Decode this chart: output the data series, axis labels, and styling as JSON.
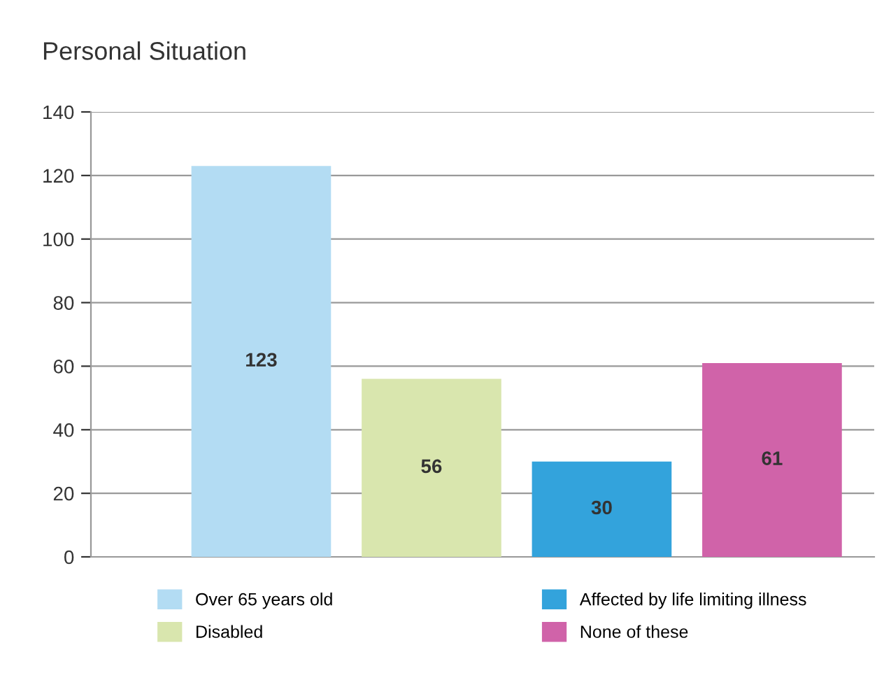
{
  "chart_data": {
    "type": "bar",
    "title": "Personal Situation",
    "categories": [
      null,
      null,
      null,
      null
    ],
    "series": [
      {
        "name": "Over 65 years old",
        "color": "#b3dcf3",
        "values": [
          123,
          null,
          null,
          null
        ]
      },
      {
        "name": "Disabled",
        "color": "#d9e6ae",
        "values": [
          null,
          56,
          null,
          null
        ]
      },
      {
        "name": "Affected by life limiting illness",
        "color": "#33a3dc",
        "values": [
          null,
          null,
          30,
          null
        ]
      },
      {
        "name": "None of these",
        "color": "#d063a9",
        "values": [
          null,
          null,
          null,
          61
        ]
      }
    ],
    "ylim": [
      0,
      140
    ],
    "yticks": [
      0,
      20,
      40,
      60,
      80,
      100,
      120,
      140
    ],
    "grid": "y",
    "legend": "bottom",
    "data_labels": true
  }
}
